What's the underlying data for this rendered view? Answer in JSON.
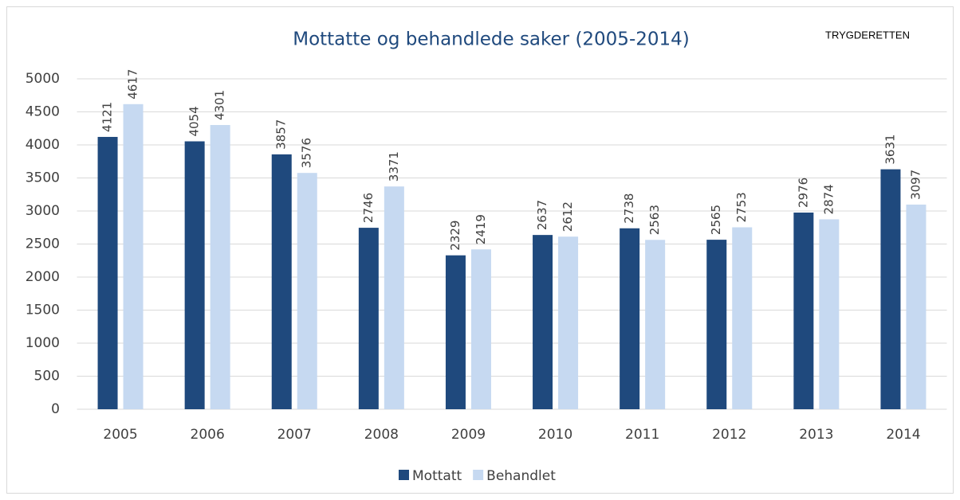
{
  "chart_data": {
    "type": "bar",
    "title": "Mottatte og behandlede saker (2005-2014)",
    "annotation": "TRYGDERETTEN",
    "categories": [
      "2005",
      "2006",
      "2007",
      "2008",
      "2009",
      "2010",
      "2011",
      "2012",
      "2013",
      "2014"
    ],
    "series": [
      {
        "name": "Mottatt",
        "color": "#1f497d",
        "values": [
          4121,
          4054,
          3857,
          2746,
          2329,
          2637,
          2738,
          2565,
          2976,
          3631
        ]
      },
      {
        "name": "Behandlet",
        "color": "#c6d9f1",
        "values": [
          4617,
          4301,
          3576,
          3371,
          2419,
          2612,
          2563,
          2753,
          2874,
          3097
        ]
      }
    ],
    "ylim": [
      0,
      5000
    ],
    "yticks": [
      0,
      500,
      1000,
      1500,
      2000,
      2500,
      3000,
      3500,
      4000,
      4500,
      5000
    ],
    "grid": true,
    "legend": "bottom"
  }
}
